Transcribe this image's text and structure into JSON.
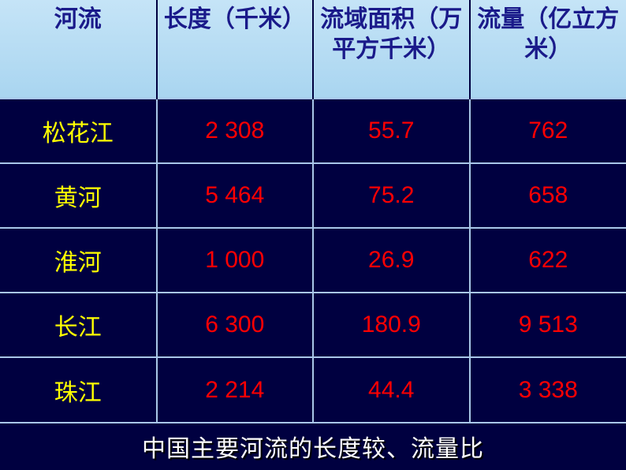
{
  "type": "table",
  "background_color": "#000040",
  "header": {
    "bg_gradient_top": "#c5e4f7",
    "bg_gradient_bottom": "#a9d5f0",
    "text_color": "#1a1a8a",
    "font_size_pt": 22,
    "labels": {
      "river": "河流",
      "length": "长度（千米）",
      "area": "流域面积（万平方千米）",
      "flow": "流量（亿立方米）"
    }
  },
  "body_style": {
    "river_name_color": "#ffff00",
    "value_color": "#ff0000",
    "grid_color": "#a9c7e8",
    "cell_bg": "#000040",
    "font_size_pt": 22
  },
  "columns": [
    "river",
    "length",
    "area",
    "flow"
  ],
  "column_widths_pct": [
    25,
    25,
    25,
    25
  ],
  "rows": [
    {
      "river": "松花江",
      "length": "2 308",
      "area": "55.7",
      "flow": "762"
    },
    {
      "river": "黄河",
      "length": "5 464",
      "area": "75.2",
      "flow": "658"
    },
    {
      "river": "淮河",
      "length": "1 000",
      "area": "26.9",
      "flow": "622"
    },
    {
      "river": "长江",
      "length": "6 300",
      "area": "180.9",
      "flow": "9 513"
    },
    {
      "river": "珠江",
      "length": "2 214",
      "area": "44.4",
      "flow": "3 338"
    }
  ],
  "caption": {
    "text": "中国主要河流的长度较、流量比",
    "text_color": "#ffffff",
    "font_size_pt": 22,
    "shadow_color": "#000000"
  }
}
